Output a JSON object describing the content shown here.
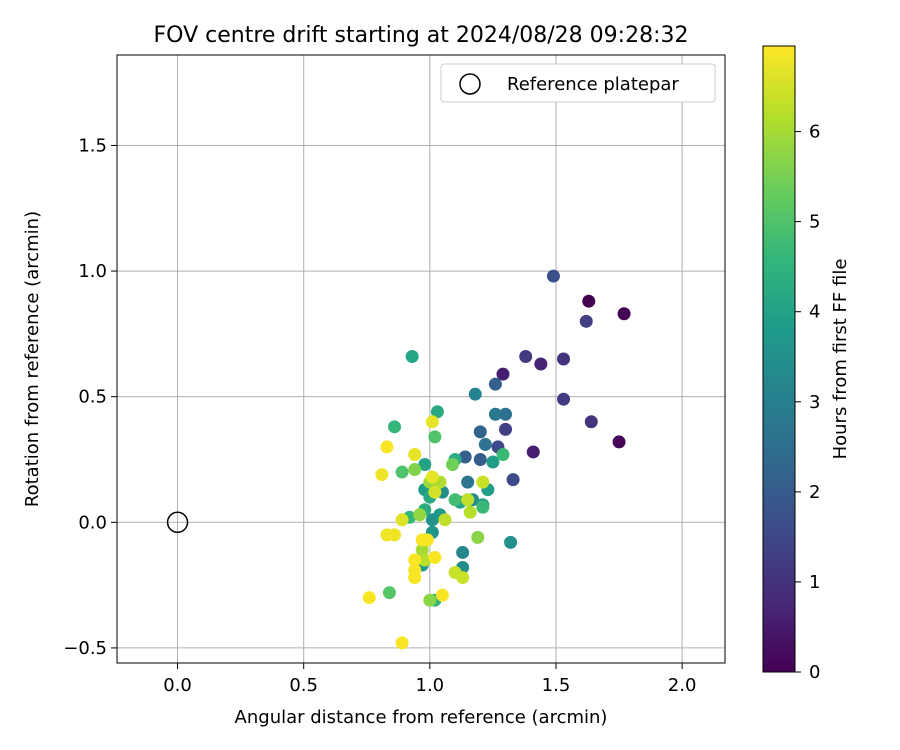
{
  "chart_data": {
    "type": "scatter",
    "title": "FOV centre drift starting at 2024/08/28 09:28:32",
    "xlabel": "Angular distance from reference (arcmin)",
    "ylabel": "Rotation from reference (arcmin)",
    "xlim": [
      -0.24,
      2.17
    ],
    "ylim": [
      -0.56,
      1.86
    ],
    "xticks": [
      0.0,
      0.5,
      1.0,
      1.5,
      2.0
    ],
    "xtick_labels": [
      "0.0",
      "0.5",
      "1.0",
      "1.5",
      "2.0"
    ],
    "yticks": [
      -0.5,
      0.0,
      0.5,
      1.0,
      1.5
    ],
    "ytick_labels": [
      "−0.5",
      "0.0",
      "0.5",
      "1.0",
      "1.5"
    ],
    "grid": true,
    "legend": {
      "position": "top-right",
      "entries": [
        "Reference platepar"
      ]
    },
    "reference_point": {
      "x": 0.0,
      "y": 0.0,
      "marker": "open-circle"
    },
    "colorbar": {
      "label": "Hours from first FF file",
      "range": [
        0,
        6.95
      ],
      "ticks": [
        0,
        1,
        2,
        3,
        4,
        5,
        6
      ],
      "tick_labels": [
        "0",
        "1",
        "2",
        "3",
        "4",
        "5",
        "6"
      ],
      "colormap": "viridis"
    },
    "points": [
      {
        "x": 1.63,
        "y": 0.88,
        "c": 0.0
      },
      {
        "x": 1.77,
        "y": 0.83,
        "c": 0.0
      },
      {
        "x": 1.75,
        "y": 0.32,
        "c": 0.1
      },
      {
        "x": 1.44,
        "y": 0.63,
        "c": 0.7
      },
      {
        "x": 1.29,
        "y": 0.59,
        "c": 0.6
      },
      {
        "x": 1.41,
        "y": 0.28,
        "c": 0.6
      },
      {
        "x": 1.53,
        "y": 0.65,
        "c": 1.0
      },
      {
        "x": 1.64,
        "y": 0.4,
        "c": 1.0
      },
      {
        "x": 1.53,
        "y": 0.49,
        "c": 1.2
      },
      {
        "x": 1.38,
        "y": 0.66,
        "c": 1.2
      },
      {
        "x": 1.62,
        "y": 0.8,
        "c": 1.3
      },
      {
        "x": 1.3,
        "y": 0.37,
        "c": 1.3
      },
      {
        "x": 1.33,
        "y": 0.17,
        "c": 1.6
      },
      {
        "x": 1.27,
        "y": 0.3,
        "c": 1.5
      },
      {
        "x": 1.49,
        "y": 0.98,
        "c": 1.7
      },
      {
        "x": 1.26,
        "y": 0.55,
        "c": 2.1
      },
      {
        "x": 1.2,
        "y": 0.25,
        "c": 2.0
      },
      {
        "x": 1.14,
        "y": 0.26,
        "c": 2.1
      },
      {
        "x": 1.2,
        "y": 0.36,
        "c": 2.2
      },
      {
        "x": 1.3,
        "y": 0.43,
        "c": 2.5
      },
      {
        "x": 1.26,
        "y": 0.43,
        "c": 2.8
      },
      {
        "x": 1.22,
        "y": 0.31,
        "c": 2.6
      },
      {
        "x": 1.15,
        "y": 0.16,
        "c": 2.7
      },
      {
        "x": 1.18,
        "y": 0.51,
        "c": 3.1
      },
      {
        "x": 1.13,
        "y": -0.12,
        "c": 3.2
      },
      {
        "x": 1.13,
        "y": -0.18,
        "c": 3.4
      },
      {
        "x": 1.32,
        "y": -0.08,
        "c": 3.5
      },
      {
        "x": 1.17,
        "y": 0.09,
        "c": 3.3
      },
      {
        "x": 1.05,
        "y": 0.12,
        "c": 3.4
      },
      {
        "x": 1.01,
        "y": 0.01,
        "c": 3.5
      },
      {
        "x": 1.01,
        "y": -0.04,
        "c": 3.6
      },
      {
        "x": 0.97,
        "y": -0.17,
        "c": 3.7
      },
      {
        "x": 0.98,
        "y": 0.13,
        "c": 3.8
      },
      {
        "x": 1.04,
        "y": 0.03,
        "c": 3.7
      },
      {
        "x": 1.25,
        "y": 0.24,
        "c": 3.8
      },
      {
        "x": 1.23,
        "y": 0.13,
        "c": 3.9
      },
      {
        "x": 1.21,
        "y": 0.07,
        "c": 4.0
      },
      {
        "x": 1.12,
        "y": 0.08,
        "c": 4.1
      },
      {
        "x": 0.98,
        "y": 0.23,
        "c": 4.0
      },
      {
        "x": 1.03,
        "y": 0.44,
        "c": 4.2
      },
      {
        "x": 0.93,
        "y": 0.66,
        "c": 4.1
      },
      {
        "x": 1.0,
        "y": 0.1,
        "c": 4.2
      },
      {
        "x": 0.98,
        "y": 0.05,
        "c": 4.3
      },
      {
        "x": 1.1,
        "y": 0.25,
        "c": 4.3
      },
      {
        "x": 1.02,
        "y": -0.31,
        "c": 4.5
      },
      {
        "x": 0.86,
        "y": 0.38,
        "c": 4.6
      },
      {
        "x": 0.92,
        "y": 0.02,
        "c": 4.6
      },
      {
        "x": 1.29,
        "y": 0.27,
        "c": 4.7
      },
      {
        "x": 1.21,
        "y": 0.06,
        "c": 4.7
      },
      {
        "x": 1.1,
        "y": 0.09,
        "c": 4.8
      },
      {
        "x": 1.02,
        "y": 0.34,
        "c": 5.0
      },
      {
        "x": 0.89,
        "y": 0.2,
        "c": 5.0
      },
      {
        "x": 0.84,
        "y": -0.28,
        "c": 5.1
      },
      {
        "x": 0.98,
        "y": -0.07,
        "c": 5.3
      },
      {
        "x": 1.15,
        "y": 0.09,
        "c": 5.5
      },
      {
        "x": 1.09,
        "y": 0.23,
        "c": 5.4
      },
      {
        "x": 0.94,
        "y": 0.21,
        "c": 5.6
      },
      {
        "x": 1.0,
        "y": -0.31,
        "c": 5.7
      },
      {
        "x": 1.19,
        "y": -0.06,
        "c": 5.7
      },
      {
        "x": 0.96,
        "y": 0.03,
        "c": 5.8
      },
      {
        "x": 1.0,
        "y": 0.16,
        "c": 5.9
      },
      {
        "x": 0.97,
        "y": -0.11,
        "c": 6.0
      },
      {
        "x": 1.04,
        "y": 0.16,
        "c": 6.1
      },
      {
        "x": 1.16,
        "y": 0.04,
        "c": 6.2
      },
      {
        "x": 1.06,
        "y": 0.01,
        "c": 6.3
      },
      {
        "x": 0.98,
        "y": -0.15,
        "c": 6.2
      },
      {
        "x": 1.13,
        "y": -0.22,
        "c": 6.4
      },
      {
        "x": 1.1,
        "y": -0.2,
        "c": 6.4
      },
      {
        "x": 1.21,
        "y": 0.16,
        "c": 6.4
      },
      {
        "x": 1.15,
        "y": 0.09,
        "c": 6.3
      },
      {
        "x": 1.02,
        "y": 0.12,
        "c": 6.5
      },
      {
        "x": 0.89,
        "y": 0.01,
        "c": 6.6
      },
      {
        "x": 1.01,
        "y": 0.4,
        "c": 6.7
      },
      {
        "x": 1.01,
        "y": 0.18,
        "c": 6.7
      },
      {
        "x": 0.94,
        "y": 0.27,
        "c": 6.7
      },
      {
        "x": 0.86,
        "y": -0.05,
        "c": 6.8
      },
      {
        "x": 0.83,
        "y": -0.05,
        "c": 6.8
      },
      {
        "x": 0.81,
        "y": 0.19,
        "c": 6.8
      },
      {
        "x": 0.83,
        "y": 0.3,
        "c": 6.9
      },
      {
        "x": 0.94,
        "y": -0.15,
        "c": 6.9
      },
      {
        "x": 0.94,
        "y": -0.19,
        "c": 6.9
      },
      {
        "x": 0.94,
        "y": -0.22,
        "c": 6.9
      },
      {
        "x": 0.97,
        "y": -0.07,
        "c": 6.9
      },
      {
        "x": 0.99,
        "y": -0.07,
        "c": 6.9
      },
      {
        "x": 1.02,
        "y": -0.14,
        "c": 6.9
      },
      {
        "x": 1.05,
        "y": -0.29,
        "c": 6.9
      },
      {
        "x": 0.76,
        "y": -0.3,
        "c": 6.9
      },
      {
        "x": 0.89,
        "y": -0.48,
        "c": 6.9
      }
    ]
  }
}
